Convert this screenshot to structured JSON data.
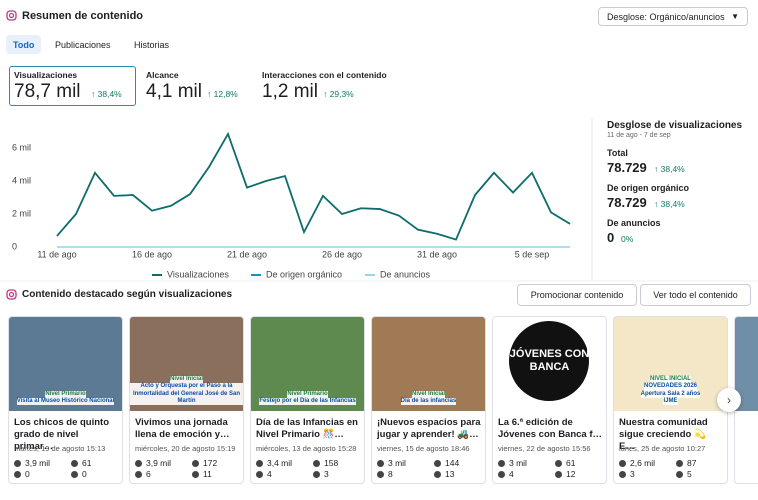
{
  "header": {
    "title": "Resumen de contenido",
    "dropdown": "Desglose: Orgánico/anuncios"
  },
  "tabs": [
    "Todo",
    "Publicaciones",
    "Historias"
  ],
  "metrics": [
    {
      "label": "Visualizaciones",
      "value": "78,7 mil",
      "change": "38,4%"
    },
    {
      "label": "Alcance",
      "value": "4,1 mil",
      "change": "12,8%"
    },
    {
      "label": "Interacciones con el contenido",
      "value": "1,2 mil",
      "change": "29,3%"
    }
  ],
  "chart_data": {
    "type": "line",
    "categories": [
      "11 de ago",
      null,
      null,
      null,
      null,
      "16 de ago",
      null,
      null,
      null,
      null,
      "21 de ago",
      null,
      null,
      null,
      null,
      "26 de ago",
      null,
      null,
      null,
      null,
      "31 de ago",
      null,
      null,
      null,
      null,
      "5 de sep",
      null,
      null
    ],
    "series": [
      {
        "name": "De anuncios",
        "color": "#8fd6ef",
        "values": [
          0,
          0,
          0,
          0,
          0,
          0,
          0,
          0,
          0,
          0,
          0,
          0,
          0,
          0,
          0,
          0,
          0,
          0,
          0,
          0,
          0,
          0,
          0,
          0,
          0,
          0,
          0,
          0
        ]
      },
      {
        "name": "De origen orgánico",
        "color": "#1b8fbf",
        "values": [
          670,
          2000,
          4500,
          3100,
          3150,
          2200,
          2500,
          3200,
          4850,
          6850,
          3600,
          4000,
          4300,
          900,
          3100,
          2000,
          2350,
          2300,
          1900,
          1050,
          800,
          450,
          3150,
          4500,
          3300,
          4500,
          2100,
          1400
        ]
      },
      {
        "name": "Visualizaciones",
        "color": "#0f6e6b",
        "values": [
          670,
          2000,
          4500,
          3100,
          3150,
          2200,
          2500,
          3200,
          4850,
          6850,
          3600,
          4000,
          4300,
          900,
          3100,
          2000,
          2350,
          2300,
          1900,
          1050,
          800,
          450,
          3150,
          4500,
          3300,
          4500,
          2100,
          1400
        ]
      }
    ],
    "ylim": [
      0,
      7000
    ],
    "yticks": [
      0,
      {
        "value": 2000,
        "label": "2 mil"
      },
      {
        "value": 4000,
        "label": "4 mil"
      },
      {
        "value": 6000,
        "label": "6 mil"
      }
    ],
    "grid": false
  },
  "breakdown": {
    "title": "Desglose de visualizaciones",
    "period": "11 de ago - 7 de sep",
    "rows": [
      {
        "label": "Total",
        "value": "78.729",
        "change": "38,4%"
      },
      {
        "label": "De origen orgánico",
        "value": "78.729",
        "change": "38,4%"
      },
      {
        "label": "De anuncios",
        "value": "0",
        "change": "0%"
      }
    ]
  },
  "featured": {
    "title": "Contenido destacado según visualizaciones",
    "buttons": [
      "Promocionar contenido",
      "Ver todo el contenido"
    ],
    "cards": [
      {
        "image_text": [
          "Nivel Primario",
          "Visita al Museo Histórico Nacional"
        ],
        "title": "Los chicos de quinto grado de nivel primar…",
        "date": "martes, 19 de agosto 15:13",
        "views": "3,9 mil",
        "likes": "61",
        "comments": "0",
        "shares": "0"
      },
      {
        "image_text": [
          "Nivel Inicial",
          "Acto y Orquesta por el Paso a la Inmortalidad del General José de San Martín"
        ],
        "title": "Vivimos una jornada llena de emoción y…",
        "date": "miércoles, 20 de agosto 15:19",
        "views": "3,9 mil",
        "likes": "172",
        "comments": "6",
        "shares": "11"
      },
      {
        "image_text": [
          "Nivel Primario",
          "Festejo por el Día de las Infancias"
        ],
        "title": "Día de las Infancias en Nivel Primario 🎊…",
        "date": "miércoles, 13 de agosto 15:28",
        "views": "3,4 mil",
        "likes": "158",
        "comments": "4",
        "shares": "3"
      },
      {
        "image_text": [
          "Nivel Inicial",
          "Día de las infancias"
        ],
        "title": "¡Nuevos espacios para jugar y aprender! 🚜…",
        "date": "viernes, 15 de agosto 18:46",
        "views": "3 mil",
        "likes": "144",
        "comments": "8",
        "shares": "13"
      },
      {
        "image_text": [
          "JÓVENES CON BANCA"
        ],
        "title": "La 6.ª edición de Jóvenes con Banca f…",
        "date": "viernes, 22 de agosto 15:56",
        "views": "3 mil",
        "likes": "61",
        "comments": "4",
        "shares": "12"
      },
      {
        "image_text": [
          "NIVEL INICIAL",
          "NOVEDADES 2026",
          "Apertura Sala 2 años",
          "IJME"
        ],
        "title": "Nuestra comunidad sigue creciendo 💫 E…",
        "date": "lunes, 25 de agosto 10:27",
        "views": "2,6 mil",
        "likes": "87",
        "comments": "3",
        "shares": "5"
      }
    ]
  }
}
